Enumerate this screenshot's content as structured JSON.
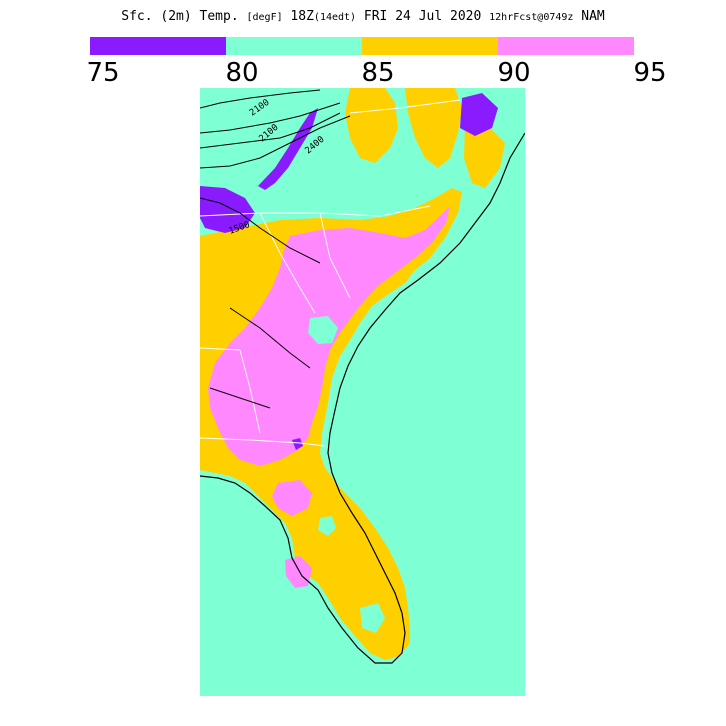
{
  "title": {
    "main": "Sfc. (2m) Temp. ",
    "units": "[degF]",
    "valid": " 18Z",
    "local": "(14edt)",
    "date": " FRI 24 Jul 2020 ",
    "forecast": "12hrFcst@0749z",
    "model": " NAM"
  },
  "colorbar": {
    "ticks": [
      "75",
      "80",
      "85",
      "90",
      "95"
    ],
    "bins": [
      {
        "range": "75-80",
        "color": "#8a1aff"
      },
      {
        "range": "80-85",
        "color": "#7fffd4"
      },
      {
        "range": "85-90",
        "color": "#ffd000"
      },
      {
        "range": "90-95",
        "color": "#ff88ff"
      }
    ]
  },
  "map": {
    "region": "Southeastern United States",
    "ocean_color": "#7fffd4",
    "contour_labels": [
      "2100",
      "2100",
      "2400",
      "1500"
    ]
  }
}
